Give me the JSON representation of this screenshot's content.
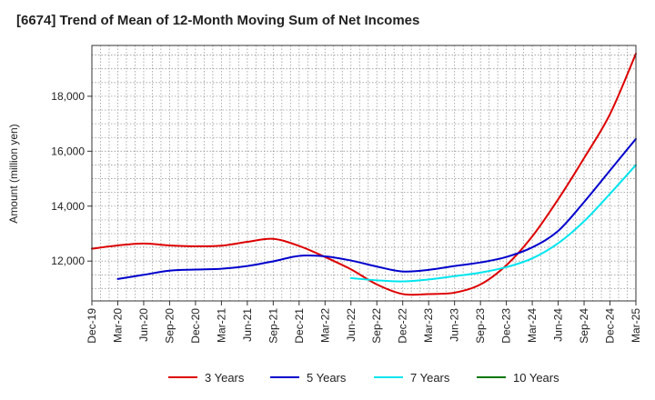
{
  "chart_data": {
    "type": "line",
    "title": "[6674]  Trend of Mean of 12-Month Moving Sum of Net Incomes",
    "ylabel": "Amount (million yen)",
    "xlabel": "",
    "x_ticks": [
      "Dec-19",
      "Mar-20",
      "Jun-20",
      "Sep-20",
      "Dec-20",
      "Mar-21",
      "Jun-21",
      "Sep-21",
      "Dec-21",
      "Mar-22",
      "Jun-22",
      "Sep-22",
      "Dec-22",
      "Mar-23",
      "Jun-23",
      "Sep-23",
      "Dec-23",
      "Mar-24",
      "Jun-24",
      "Sep-24",
      "Dec-24",
      "Mar-25"
    ],
    "y_ticks": [
      12000,
      14000,
      16000,
      18000
    ],
    "y_tick_labels": [
      "12,000",
      "14,000",
      "16,000",
      "18,000"
    ],
    "ylim": [
      10550,
      19850
    ],
    "grid": true,
    "legend_position": "bottom",
    "series": [
      {
        "name": "3 Years",
        "color": "#dd0000",
        "points": [
          [
            "Dec-19",
            12450
          ],
          [
            "Mar-20",
            12570
          ],
          [
            "Jun-20",
            12640
          ],
          [
            "Sep-20",
            12570
          ],
          [
            "Dec-20",
            12540
          ],
          [
            "Mar-21",
            12560
          ],
          [
            "Jun-21",
            12700
          ],
          [
            "Sep-21",
            12810
          ],
          [
            "Dec-21",
            12550
          ],
          [
            "Mar-22",
            12150
          ],
          [
            "Jun-22",
            11700
          ],
          [
            "Sep-22",
            11150
          ],
          [
            "Dec-22",
            10800
          ],
          [
            "Mar-23",
            10800
          ],
          [
            "Jun-23",
            10850
          ],
          [
            "Sep-23",
            11150
          ],
          [
            "Dec-23",
            11850
          ],
          [
            "Mar-24",
            12900
          ],
          [
            "Jun-24",
            14250
          ],
          [
            "Sep-24",
            15750
          ],
          [
            "Dec-24",
            17350
          ],
          [
            "Mar-25",
            19550
          ]
        ]
      },
      {
        "name": "5 Years",
        "color": "#0000cc",
        "points": [
          [
            "Mar-20",
            11350
          ],
          [
            "Jun-20",
            11500
          ],
          [
            "Sep-20",
            11650
          ],
          [
            "Dec-20",
            11690
          ],
          [
            "Mar-21",
            11720
          ],
          [
            "Jun-21",
            11820
          ],
          [
            "Sep-21",
            11990
          ],
          [
            "Dec-21",
            12190
          ],
          [
            "Mar-22",
            12170
          ],
          [
            "Jun-22",
            12020
          ],
          [
            "Sep-22",
            11800
          ],
          [
            "Dec-22",
            11620
          ],
          [
            "Mar-23",
            11680
          ],
          [
            "Jun-23",
            11820
          ],
          [
            "Sep-23",
            11950
          ],
          [
            "Dec-23",
            12150
          ],
          [
            "Mar-24",
            12500
          ],
          [
            "Jun-24",
            13100
          ],
          [
            "Sep-24",
            14150
          ],
          [
            "Dec-24",
            15300
          ],
          [
            "Mar-25",
            16450
          ]
        ]
      },
      {
        "name": "7 Years",
        "color": "#00e5ee",
        "points": [
          [
            "Jun-22",
            11380
          ],
          [
            "Sep-22",
            11300
          ],
          [
            "Dec-22",
            11260
          ],
          [
            "Mar-23",
            11330
          ],
          [
            "Jun-23",
            11450
          ],
          [
            "Sep-23",
            11580
          ],
          [
            "Dec-23",
            11780
          ],
          [
            "Mar-24",
            12100
          ],
          [
            "Jun-24",
            12650
          ],
          [
            "Sep-24",
            13450
          ],
          [
            "Dec-24",
            14450
          ],
          [
            "Mar-25",
            15500
          ]
        ]
      },
      {
        "name": "10 Years",
        "color": "#007700",
        "points": []
      }
    ]
  }
}
